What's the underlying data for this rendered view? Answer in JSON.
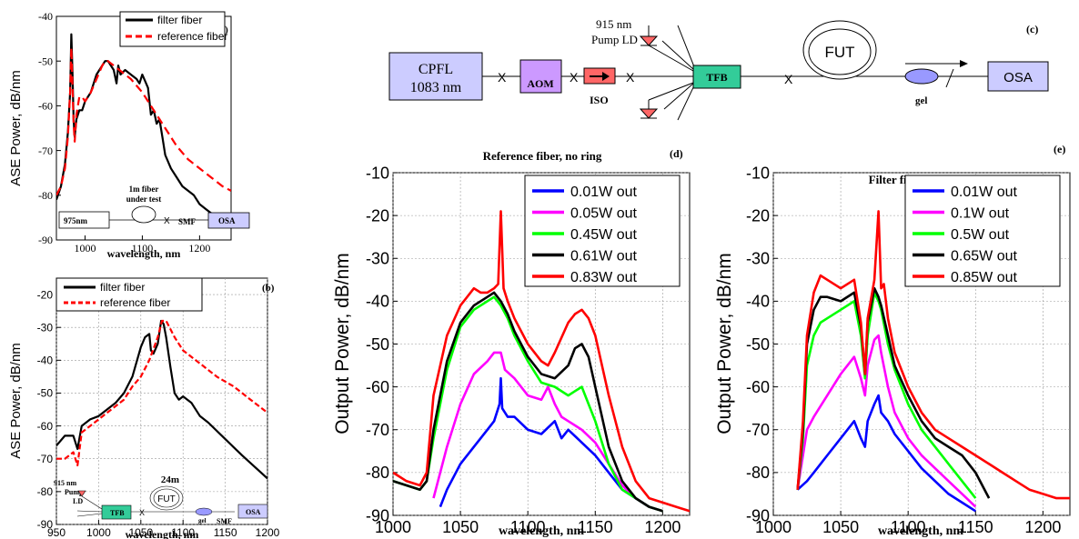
{
  "chart_data": [
    {
      "id": "a",
      "type": "line",
      "panel_label": "(a)",
      "xlabel": "wavelength, nm",
      "ylabel": "ASE Power, dB/nm",
      "xlim": [
        950,
        1255
      ],
      "ylim": [
        -90,
        -40
      ],
      "xticks": [
        1000,
        1100,
        1200
      ],
      "yticks": [
        -90,
        -80,
        -70,
        -60,
        -50,
        -40
      ],
      "grid": false,
      "legend": "top-right",
      "series": [
        {
          "name": "filter fiber",
          "color": "#000000",
          "dash": "",
          "x": [
            950,
            958,
            965,
            970,
            974,
            976,
            978,
            980,
            982,
            985,
            990,
            995,
            1000,
            1010,
            1020,
            1030,
            1035,
            1040,
            1050,
            1055,
            1058,
            1062,
            1070,
            1080,
            1090,
            1095,
            1100,
            1110,
            1115,
            1120,
            1125,
            1130,
            1135,
            1140,
            1150,
            1160,
            1170,
            1180,
            1190,
            1200,
            1210,
            1220,
            1230,
            1240,
            1250,
            1255
          ],
          "y": [
            -81,
            -78,
            -73,
            -66,
            -57,
            -44,
            -52,
            -63,
            -67,
            -63,
            -61,
            -61,
            -59,
            -57,
            -53,
            -51,
            -50,
            -50,
            -52,
            -55,
            -51,
            -53,
            -52,
            -53,
            -54,
            -55,
            -53,
            -56,
            -62,
            -61,
            -64,
            -63,
            -67,
            -71,
            -74,
            -76,
            -78,
            -79,
            -80,
            -82,
            -83,
            -84,
            -85,
            -86,
            -87,
            -87
          ]
        },
        {
          "name": "reference fiber",
          "color": "#ff0000",
          "dash": "9,5",
          "x": [
            950,
            958,
            965,
            970,
            974,
            976,
            978,
            980,
            982,
            985,
            990,
            995,
            1000,
            1010,
            1020,
            1030,
            1035,
            1040,
            1050,
            1060,
            1080,
            1100,
            1120,
            1140,
            1160,
            1180,
            1200,
            1220,
            1240,
            1255
          ],
          "y": [
            -80,
            -78,
            -74,
            -67,
            -57,
            -47,
            -55,
            -64,
            -68,
            -62,
            -58,
            -58,
            -59,
            -57,
            -54,
            -51,
            -50,
            -50,
            -51,
            -52,
            -54,
            -57,
            -61,
            -65,
            -69,
            -72,
            -74,
            -76,
            -78,
            -79
          ]
        }
      ]
    },
    {
      "id": "b",
      "type": "line",
      "panel_label": "(b)",
      "xlabel": "wavelength, nm",
      "ylabel": "ASE Power, dB/nm",
      "xlim": [
        950,
        1200
      ],
      "ylim": [
        -90,
        -15
      ],
      "xticks": [
        950,
        1000,
        1050,
        1100,
        1150,
        1200
      ],
      "yticks": [
        -90,
        -80,
        -70,
        -60,
        -50,
        -40,
        -30,
        -20
      ],
      "grid": true,
      "legend": "top-left",
      "series": [
        {
          "name": "filter fiber",
          "color": "#000000",
          "dash": "",
          "x": [
            950,
            960,
            970,
            975,
            980,
            990,
            1000,
            1010,
            1020,
            1030,
            1040,
            1050,
            1055,
            1060,
            1062,
            1065,
            1070,
            1074,
            1077,
            1080,
            1085,
            1090,
            1095,
            1100,
            1110,
            1120,
            1130,
            1150,
            1170,
            1200
          ],
          "y": [
            -66,
            -63,
            -63,
            -67,
            -60,
            -58,
            -57,
            -55,
            -53,
            -50,
            -45,
            -36,
            -33,
            -32,
            -37,
            -38,
            -35,
            -28,
            -29,
            -33,
            -42,
            -50,
            -52,
            -51,
            -53,
            -57,
            -59,
            -64,
            -69,
            -76
          ]
        },
        {
          "name": "reference fiber",
          "color": "#ff0000",
          "dash": "6,3",
          "x": [
            950,
            960,
            970,
            975,
            980,
            990,
            1000,
            1010,
            1020,
            1030,
            1040,
            1050,
            1060,
            1070,
            1075,
            1080,
            1090,
            1100,
            1120,
            1140,
            1160,
            1180,
            1200
          ],
          "y": [
            -70,
            -70,
            -68,
            -72,
            -62,
            -60,
            -58,
            -56,
            -54,
            -52,
            -48,
            -45,
            -40,
            -33,
            -28,
            -28,
            -33,
            -37,
            -41,
            -45,
            -48,
            -52,
            -56
          ]
        }
      ]
    },
    {
      "id": "d",
      "type": "line",
      "panel_label": "(d)",
      "title": "Reference fiber, no ring",
      "xlabel": "wavelength, nm",
      "ylabel": "Output Power, dB/nm",
      "xlim": [
        1000,
        1220
      ],
      "ylim": [
        -90,
        -10
      ],
      "xticks": [
        1000,
        1050,
        1100,
        1150,
        1200
      ],
      "yticks": [
        -90,
        -80,
        -70,
        -60,
        -50,
        -40,
        -30,
        -20,
        -10
      ],
      "grid": true,
      "legend": "top-right",
      "series": [
        {
          "name": "0.01W out",
          "color": "#0000ff",
          "x": [
            1035,
            1040,
            1050,
            1060,
            1070,
            1075,
            1079,
            1080,
            1081,
            1085,
            1090,
            1100,
            1110,
            1120,
            1125,
            1130,
            1140,
            1150,
            1160,
            1170,
            1180,
            1190
          ],
          "y": [
            -88,
            -84,
            -78,
            -74,
            -70,
            -68,
            -64,
            -58,
            -65,
            -67,
            -67,
            -70,
            -71,
            -68,
            -72,
            -70,
            -73,
            -76,
            -80,
            -84,
            -86,
            -88
          ]
        },
        {
          "name": "0.05W out",
          "color": "#ff00ff",
          "x": [
            1030,
            1040,
            1050,
            1060,
            1070,
            1075,
            1080,
            1083,
            1090,
            1100,
            1110,
            1115,
            1120,
            1125,
            1130,
            1140,
            1150,
            1160,
            1170,
            1180,
            1190,
            1200
          ],
          "y": [
            -86,
            -74,
            -64,
            -57,
            -54,
            -52,
            -52,
            -56,
            -58,
            -62,
            -63,
            -60,
            -64,
            -67,
            -68,
            -70,
            -73,
            -78,
            -83,
            -86,
            -88,
            -89
          ]
        },
        {
          "name": "0.45W out",
          "color": "#00ff00",
          "x": [
            1000,
            1010,
            1020,
            1025,
            1030,
            1040,
            1050,
            1060,
            1070,
            1075,
            1080,
            1085,
            1090,
            1100,
            1110,
            1120,
            1130,
            1135,
            1140,
            1145,
            1150,
            1160,
            1170,
            1180,
            1190,
            1200
          ],
          "y": [
            -82,
            -83,
            -84,
            -82,
            -72,
            -56,
            -46,
            -42,
            -40,
            -39,
            -41,
            -44,
            -48,
            -54,
            -59,
            -60,
            -62,
            -61,
            -60,
            -64,
            -68,
            -78,
            -84,
            -86,
            -88,
            -89
          ]
        },
        {
          "name": "0.61W out",
          "color": "#000000",
          "x": [
            1000,
            1010,
            1020,
            1025,
            1030,
            1040,
            1050,
            1060,
            1070,
            1075,
            1080,
            1085,
            1090,
            1100,
            1110,
            1120,
            1130,
            1135,
            1140,
            1145,
            1150,
            1155,
            1160,
            1170,
            1180,
            1190,
            1200
          ],
          "y": [
            -82,
            -83,
            -84,
            -82,
            -70,
            -54,
            -45,
            -41,
            -39,
            -38,
            -40,
            -43,
            -47,
            -53,
            -57,
            -58,
            -55,
            -51,
            -50,
            -53,
            -60,
            -67,
            -74,
            -82,
            -86,
            -88,
            -89
          ]
        },
        {
          "name": "0.83W out",
          "color": "#ff0000",
          "x": [
            1000,
            1010,
            1020,
            1025,
            1030,
            1040,
            1050,
            1060,
            1065,
            1070,
            1075,
            1078,
            1080,
            1082,
            1085,
            1090,
            1100,
            1110,
            1115,
            1120,
            1130,
            1135,
            1140,
            1145,
            1150,
            1160,
            1170,
            1180,
            1190,
            1200,
            1210,
            1220
          ],
          "y": [
            -80,
            -82,
            -83,
            -80,
            -62,
            -48,
            -41,
            -37,
            -38,
            -38,
            -37,
            -36,
            -19,
            -37,
            -40,
            -44,
            -50,
            -54,
            -55,
            -52,
            -45,
            -43,
            -42,
            -44,
            -48,
            -62,
            -74,
            -82,
            -86,
            -87,
            -88,
            -89
          ]
        }
      ]
    },
    {
      "id": "e",
      "type": "line",
      "panel_label": "(e)",
      "title": "Filter fiber with ring",
      "xlabel": "wavelength, nm",
      "ylabel": "Output Power, dB/nm",
      "xlim": [
        1000,
        1220
      ],
      "ylim": [
        -90,
        -10
      ],
      "xticks": [
        1000,
        1050,
        1100,
        1150,
        1200
      ],
      "yticks": [
        -90,
        -80,
        -70,
        -60,
        -50,
        -40,
        -30,
        -20,
        -10
      ],
      "grid": true,
      "legend": "top-right",
      "series": [
        {
          "name": "0.01W out",
          "color": "#0000ff",
          "x": [
            1018,
            1025,
            1030,
            1040,
            1050,
            1060,
            1065,
            1068,
            1070,
            1075,
            1078,
            1080,
            1085,
            1090,
            1100,
            1110,
            1120,
            1130,
            1140,
            1150
          ],
          "y": [
            -84,
            -82,
            -80,
            -76,
            -72,
            -68,
            -72,
            -74,
            -68,
            -64,
            -62,
            -66,
            -68,
            -71,
            -75,
            -79,
            -82,
            -85,
            -87,
            -89
          ]
        },
        {
          "name": "0.1W out",
          "color": "#ff00ff",
          "x": [
            1018,
            1020,
            1025,
            1030,
            1040,
            1050,
            1055,
            1060,
            1065,
            1068,
            1070,
            1075,
            1078,
            1080,
            1085,
            1090,
            1100,
            1110,
            1120,
            1130,
            1140,
            1150
          ],
          "y": [
            -84,
            -80,
            -70,
            -67,
            -62,
            -57,
            -55,
            -53,
            -58,
            -62,
            -55,
            -49,
            -48,
            -52,
            -60,
            -66,
            -72,
            -76,
            -79,
            -82,
            -85,
            -88
          ]
        },
        {
          "name": "0.5W out",
          "color": "#00ff00",
          "x": [
            1018,
            1022,
            1025,
            1030,
            1035,
            1040,
            1050,
            1060,
            1065,
            1068,
            1070,
            1075,
            1078,
            1080,
            1085,
            1090,
            1100,
            1110,
            1120,
            1130,
            1140,
            1150
          ],
          "y": [
            -84,
            -72,
            -55,
            -48,
            -45,
            -44,
            -42,
            -40,
            -48,
            -58,
            -48,
            -38,
            -40,
            -42,
            -50,
            -56,
            -64,
            -70,
            -74,
            -78,
            -82,
            -86
          ]
        },
        {
          "name": "0.65W out",
          "color": "#000000",
          "x": [
            1018,
            1022,
            1025,
            1030,
            1035,
            1040,
            1050,
            1060,
            1065,
            1068,
            1070,
            1075,
            1078,
            1080,
            1085,
            1090,
            1100,
            1110,
            1120,
            1130,
            1140,
            1150,
            1160
          ],
          "y": [
            -84,
            -70,
            -50,
            -42,
            -39,
            -39,
            -40,
            -38,
            -46,
            -57,
            -45,
            -37,
            -39,
            -41,
            -48,
            -55,
            -62,
            -68,
            -72,
            -74,
            -76,
            -80,
            -86
          ]
        },
        {
          "name": "0.85W out",
          "color": "#ff0000",
          "x": [
            1018,
            1022,
            1025,
            1030,
            1035,
            1040,
            1050,
            1060,
            1065,
            1068,
            1070,
            1075,
            1078,
            1080,
            1082,
            1085,
            1090,
            1100,
            1110,
            1120,
            1130,
            1140,
            1150,
            1160,
            1170,
            1180,
            1190,
            1200,
            1210,
            1220
          ],
          "y": [
            -84,
            -68,
            -48,
            -38,
            -34,
            -35,
            -37,
            -35,
            -45,
            -57,
            -44,
            -35,
            -19,
            -37,
            -36,
            -44,
            -52,
            -60,
            -66,
            -70,
            -72,
            -74,
            -76,
            -78,
            -80,
            -82,
            -84,
            -85,
            -86,
            -86
          ]
        }
      ]
    }
  ],
  "schematic_a": {
    "source": "975nm",
    "fiber": "1m fiber",
    "fiber_sub": "under test",
    "smf": "SMF",
    "osa": "OSA"
  },
  "schematic_b": {
    "pump": "915 nm",
    "pump2": "Pump",
    "pump3": "LD",
    "tfb": "TFB",
    "len": "24m",
    "fut": "FUT",
    "gel": "gel",
    "smf": "SMF",
    "osa": "OSA"
  },
  "diagram_c": {
    "label": "(c)",
    "cpfl1": "CPFL",
    "cpfl2": "1083 nm",
    "aom": "AOM",
    "iso": "ISO",
    "pump1": "915 nm",
    "pump2": "Pump LD",
    "tfb": "TFB",
    "fut": "FUT",
    "gel": "gel",
    "osa": "OSA",
    "splice": "X"
  },
  "colors": {
    "box_fill": "#ccccff",
    "aom_fill": "#cc99ff",
    "tfb_fill": "#33cc99",
    "iso_fill": "#ff6666",
    "gel_fill": "#9999ff"
  }
}
